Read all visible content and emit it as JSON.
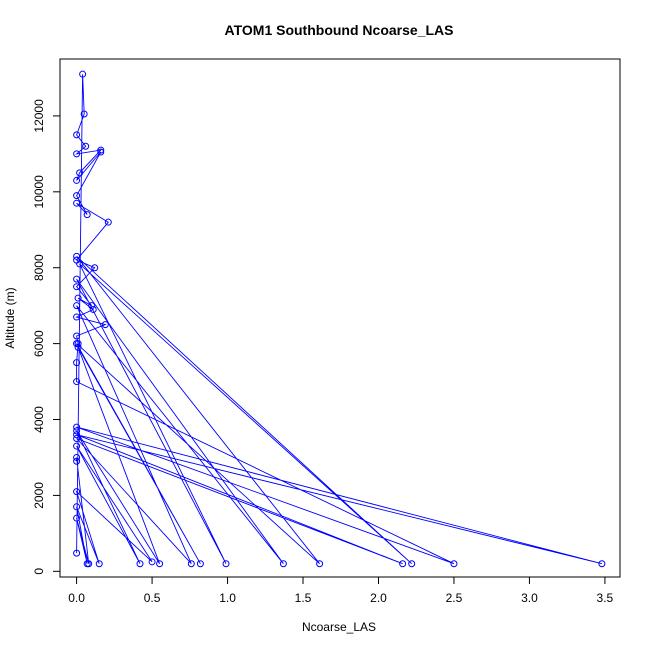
{
  "chart_data": {
    "type": "line",
    "title": "ATOM1 Southbound Ncoarse_LAS",
    "xlabel": "Ncoarse_LAS",
    "ylabel": "Altitude (m)",
    "xlim": [
      -0.11,
      3.6
    ],
    "ylim": [
      -150,
      13500
    ],
    "xticks": [
      0.0,
      0.5,
      1.0,
      1.5,
      2.0,
      2.5,
      3.0,
      3.5
    ],
    "xtick_labels": [
      "0.0",
      "0.5",
      "1.0",
      "1.5",
      "2.0",
      "2.5",
      "3.0",
      "3.5"
    ],
    "yticks": [
      0,
      2000,
      4000,
      6000,
      8000,
      10000,
      12000
    ],
    "ytick_labels": [
      "0",
      "2000",
      "4000",
      "6000",
      "8000",
      "10000",
      "12000"
    ],
    "marker": "open-circle",
    "grid": false,
    "color": "#0000ff",
    "series": [
      {
        "x": [
          0.0,
          0.04,
          0.05,
          0.0,
          0.06,
          0.0,
          0.16,
          0.02,
          0.0,
          0.16,
          0.0,
          0.07,
          0.0,
          0.21,
          0.0,
          0.12,
          0.0,
          0.1,
          0.01,
          0.11,
          0.0,
          0.19,
          0.0,
          0.01,
          0.0,
          0.0,
          2.5,
          0.0,
          3.48,
          0.0,
          2.16,
          0.0,
          0.76,
          0.0,
          1.37,
          0.0,
          0.99,
          0.02,
          2.22,
          0.0,
          1.61,
          0.0,
          0.82,
          0.01,
          0.55,
          0.0,
          0.42,
          0.0,
          0.5,
          0.0,
          0.15,
          0.0,
          0.07,
          0.0,
          0.08,
          0.0,
          0.0
        ],
        "y": [
          480,
          13100,
          12050,
          11500,
          11200,
          11000,
          11100,
          10500,
          10300,
          11050,
          9900,
          9400,
          9700,
          9200,
          8200,
          8000,
          7500,
          7000,
          7200,
          6900,
          6700,
          6500,
          6200,
          6000,
          5500,
          5000,
          200,
          3800,
          200,
          3600,
          200,
          3500,
          200,
          7000,
          200,
          7700,
          200,
          8100,
          200,
          8300,
          200,
          6000,
          200,
          5900,
          200,
          3700,
          200,
          3300,
          250,
          2100,
          200,
          1700,
          200,
          1400,
          200,
          3000,
          2900
        ]
      }
    ]
  }
}
